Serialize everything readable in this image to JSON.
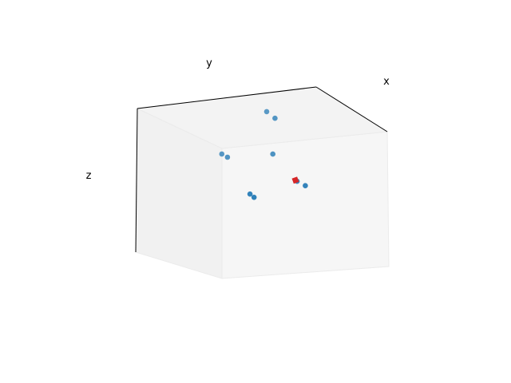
{
  "chart_data": {
    "type": "scatter",
    "projection": "3d",
    "title": "",
    "xlabel": "x",
    "ylabel": "y",
    "zlabel": "z",
    "ticks_visible": false,
    "grid": false,
    "legend": "none",
    "point_color": "#1f77b4",
    "highlight_color": "#d62728",
    "points": [
      {
        "x": 0.05,
        "y": 0.1,
        "z": 0.92
      },
      {
        "x": 0.1,
        "y": 0.13,
        "z": 0.88
      },
      {
        "x": 0.68,
        "y": 0.8,
        "z": 0.95
      },
      {
        "x": 0.72,
        "y": 0.78,
        "z": 0.9
      },
      {
        "x": 0.4,
        "y": 0.18,
        "z": 0.85
      },
      {
        "x": 0.18,
        "y": 0.02,
        "z": 0.62
      },
      {
        "x": 0.22,
        "y": 0.05,
        "z": 0.58
      },
      {
        "x": 0.48,
        "y": 0.05,
        "z": 0.67
      },
      {
        "x": 0.53,
        "y": 0.05,
        "z": 0.63
      }
    ],
    "highlight": {
      "x": 0.47,
      "y": 0.05,
      "z": 0.68
    }
  }
}
